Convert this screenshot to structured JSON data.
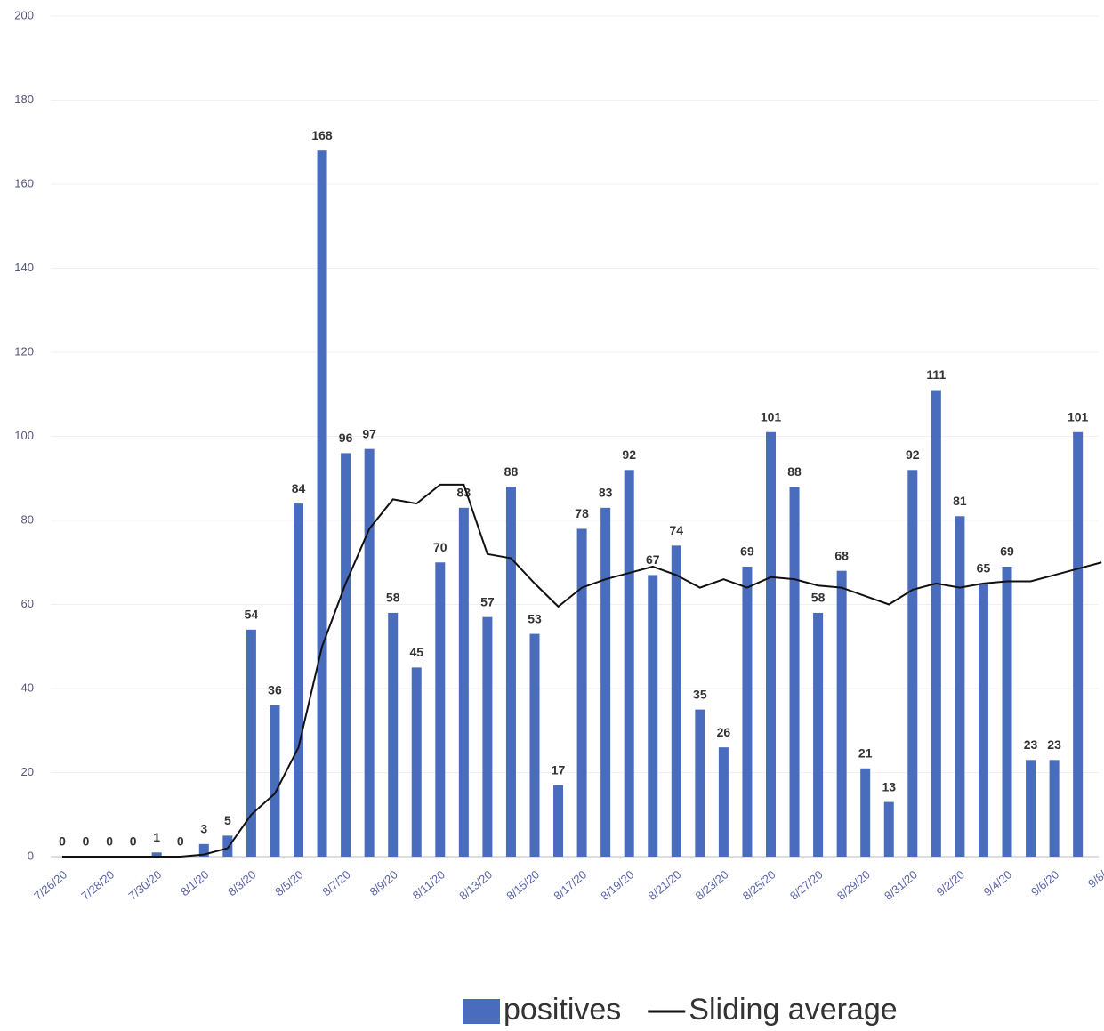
{
  "chart_data": {
    "type": "bar",
    "categories": [
      "7/26/20",
      null,
      "7/28/20",
      null,
      "7/30/20",
      null,
      "8/1/20",
      null,
      "8/3/20",
      null,
      "8/5/20",
      null,
      "8/7/20",
      null,
      "8/9/20",
      null,
      "8/11/20",
      null,
      "8/13/20",
      null,
      "8/15/20",
      null,
      "8/17/20",
      null,
      "8/19/20",
      null,
      "8/21/20",
      null,
      "8/23/20",
      null,
      "8/25/20",
      null,
      "8/27/20",
      null,
      "8/29/20",
      null,
      "8/31/20",
      null,
      "9/2/20",
      null,
      "9/4/20",
      null,
      "9/6/20",
      null,
      "9/8/"
    ],
    "series": [
      {
        "name": "positives",
        "type": "bar",
        "color": "#4a6cbd",
        "values": [
          0,
          0,
          0,
          0,
          1,
          0,
          3,
          5,
          54,
          36,
          84,
          168,
          96,
          97,
          58,
          45,
          70,
          83,
          57,
          88,
          53,
          17,
          78,
          83,
          92,
          67,
          74,
          35,
          26,
          69,
          101,
          88,
          58,
          68,
          21,
          13,
          92,
          111,
          81,
          65,
          69,
          23,
          23,
          101,
          null
        ]
      },
      {
        "name": "Sliding average",
        "type": "line",
        "color": "#111111",
        "values": [
          0,
          0,
          0,
          0,
          0,
          0,
          0.5,
          2,
          10,
          15,
          26,
          50,
          65,
          78,
          85,
          84,
          88.5,
          88.5,
          72,
          71,
          65,
          59.5,
          64,
          66,
          67.5,
          69,
          67,
          64,
          66,
          64,
          66.5,
          66,
          64.5,
          64,
          62,
          60,
          63.5,
          65,
          64,
          65,
          65.5,
          65.5,
          67,
          68.5,
          70
        ]
      }
    ],
    "ylim": [
      0,
      200
    ],
    "yticks": [
      0,
      20,
      40,
      60,
      80,
      100,
      120,
      140,
      160,
      180,
      200
    ],
    "grid": true,
    "legend": "bottom"
  }
}
